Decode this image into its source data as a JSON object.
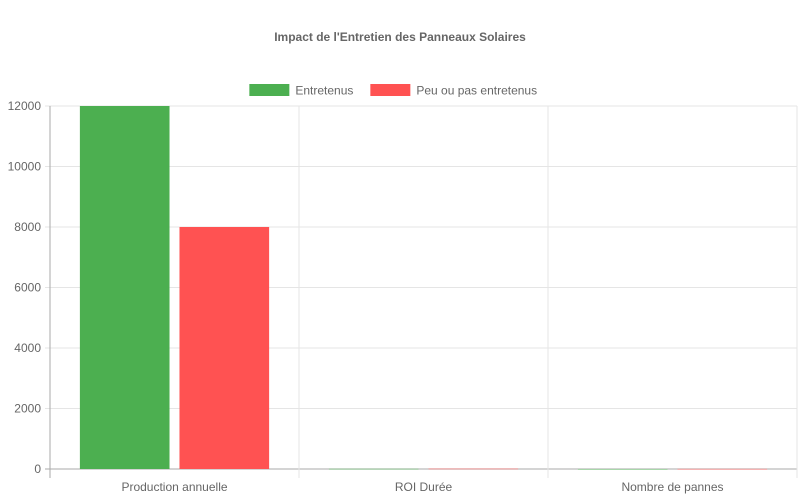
{
  "chart_data": {
    "type": "bar",
    "title": "Impact de l'Entretien des Panneaux Solaires",
    "categories": [
      "Production annuelle",
      "ROI Durée",
      "Nombre de pannes"
    ],
    "series": [
      {
        "name": "Entretenus",
        "color": "#4caf50",
        "values": [
          12000,
          6,
          1
        ]
      },
      {
        "name": "Peu ou pas entretenus",
        "color": "#ff5252",
        "values": [
          8000,
          10,
          4
        ]
      }
    ],
    "ylim": [
      0,
      12000
    ],
    "yticks": [
      0,
      2000,
      4000,
      6000,
      8000,
      10000,
      12000
    ],
    "grid": true,
    "legend": "top"
  }
}
